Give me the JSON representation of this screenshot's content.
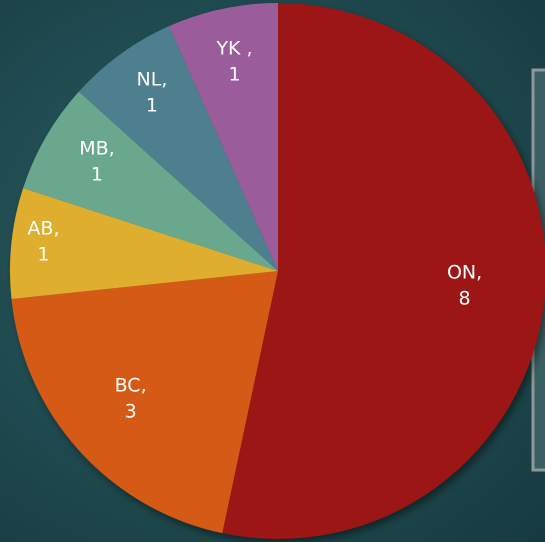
{
  "chart_data": {
    "type": "pie",
    "categories": [
      "ON,",
      "BC,",
      "AB,",
      "MB,",
      "NL,",
      "YK ,"
    ],
    "values": [
      8,
      3,
      1,
      1,
      1,
      1
    ],
    "colors": [
      "#9c1414",
      "#d45a18",
      "#dfae2e",
      "#6aa88e",
      "#4e7f8f",
      "#9a5b9b"
    ]
  }
}
